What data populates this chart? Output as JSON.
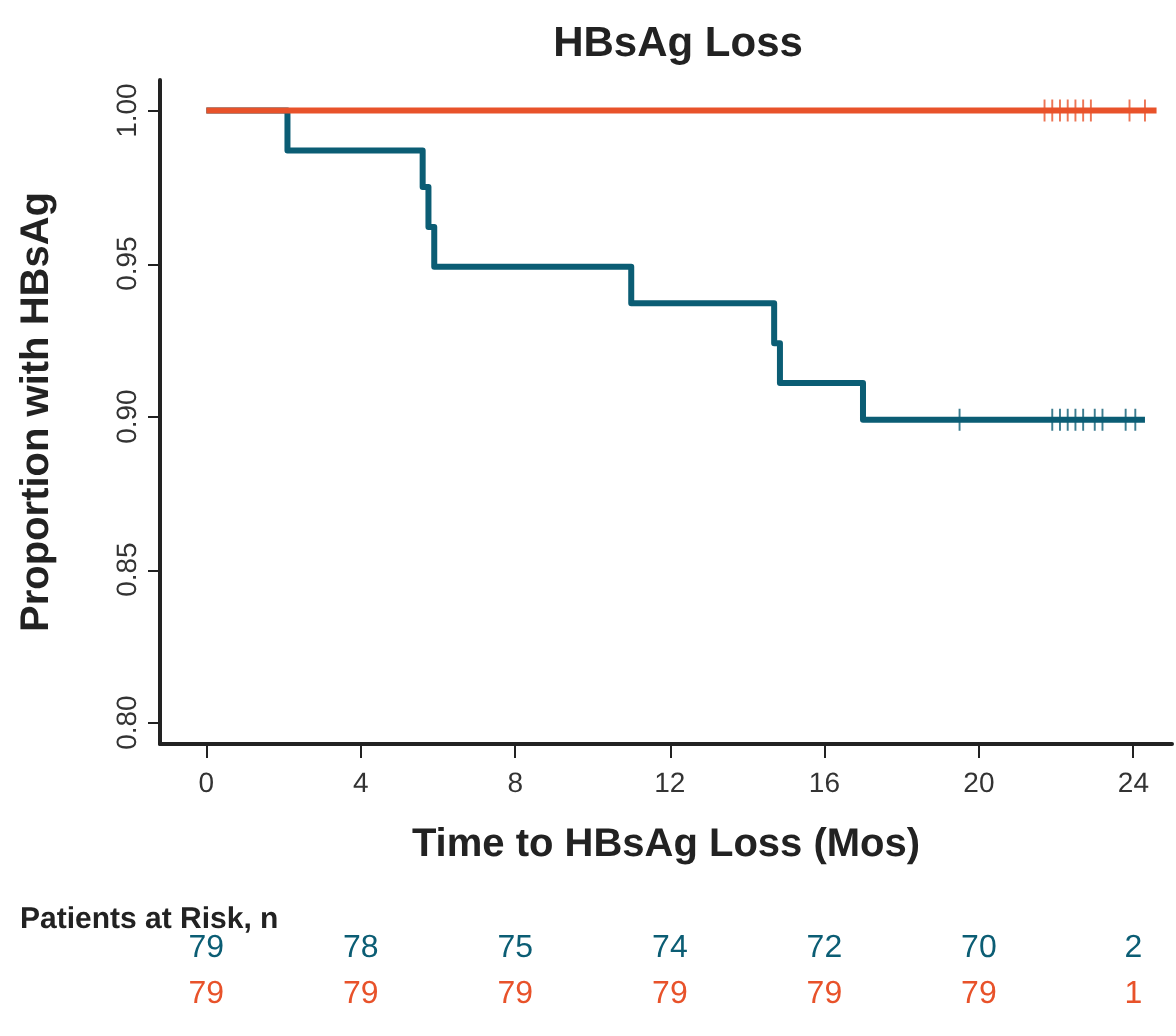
{
  "chart_data": {
    "type": "step",
    "title": "HBsAg Loss",
    "xlabel": "Time to HBsAg Loss (Mos)",
    "ylabel": "Proportion with HBsAg",
    "xlim": [
      -1.2,
      25
    ],
    "xticks": [
      0,
      4,
      8,
      12,
      16,
      20,
      24
    ],
    "ylim": [
      0.793,
      1.01
    ],
    "yticks": [
      {
        "value": 0.8,
        "label": "0.80"
      },
      {
        "value": 0.85,
        "label": "0.85"
      },
      {
        "value": 0.9,
        "label": "0.90"
      },
      {
        "value": 0.95,
        "label": "0.95"
      },
      {
        "value": 1,
        "label": "1.00"
      }
    ],
    "grid": false,
    "line_style": "solid",
    "series": [
      {
        "color": "#0b5d74",
        "x": [
          0,
          2.1,
          5.6,
          5.75,
          5.9,
          11.0,
          14.7,
          14.85,
          17.0,
          24.3
        ],
        "values": [
          1,
          0.987,
          0.975,
          0.962,
          0.949,
          0.937,
          0.924,
          0.911,
          0.899,
          0.899
        ]
      },
      {
        "color": "#e8522a",
        "x": [
          0,
          24.6
        ],
        "values": [
          1,
          1
        ]
      },
      {
        "type": "scatter",
        "marker": "cross",
        "color": "#0b5d74",
        "x": [
          19.5,
          21.9,
          22.1,
          22.3,
          22.5,
          22.7,
          23.0,
          23.2,
          23.8,
          24.05
        ],
        "values": [
          0.899,
          0.899,
          0.899,
          0.899,
          0.899,
          0.899,
          0.899,
          0.899,
          0.899,
          0.899
        ]
      },
      {
        "type": "scatter",
        "marker": "cross",
        "color": "#e8522a",
        "x": [
          21.7,
          21.9,
          22.1,
          22.3,
          22.5,
          22.7,
          22.9,
          23.9,
          24.3
        ],
        "values": [
          1,
          1,
          1,
          1,
          1,
          1,
          1,
          1,
          1
        ]
      }
    ],
    "annotations": [
      "Patients at Risk, n",
      "79",
      "78",
      "75",
      "74",
      "72",
      "70",
      "2",
      "79",
      "79",
      "79",
      "79",
      "79",
      "79",
      "1"
    ]
  }
}
